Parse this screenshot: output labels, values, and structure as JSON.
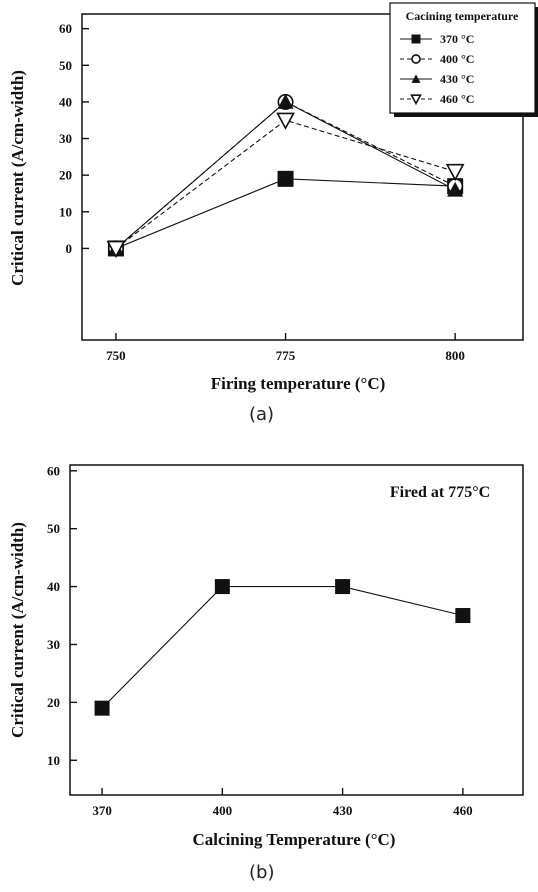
{
  "chart_data": [
    {
      "type": "line",
      "xlabel": "Firing temperature (°C)",
      "ylabel": "Critical current (A/cm-width)",
      "x": [
        750,
        775,
        800
      ],
      "xticks": [
        750,
        775,
        800
      ],
      "xlim": [
        745,
        810
      ],
      "yticks": [
        0,
        10,
        20,
        30,
        40,
        50,
        60
      ],
      "ylim": [
        -25,
        64
      ],
      "grid": false,
      "legend": {
        "title": "Cacining temperature",
        "position": "top-right"
      },
      "series": [
        {
          "name": "370 °C",
          "values": [
            0,
            19,
            17
          ],
          "marker": "square-filled",
          "line": "solid"
        },
        {
          "name": "400 °C",
          "values": [
            0,
            40,
            17
          ],
          "marker": "circle-open",
          "line": "dashed"
        },
        {
          "name": "430 °C",
          "values": [
            0,
            40,
            16
          ],
          "marker": "triangle-up-filled",
          "line": "solid"
        },
        {
          "name": "460 °C",
          "values": [
            0,
            35,
            21
          ],
          "marker": "triangle-down-open",
          "line": "dashed"
        }
      ],
      "caption": "(a)"
    },
    {
      "type": "line",
      "xlabel": "Calcining Temperature (°C)",
      "ylabel": "Critical current (A/cm-width)",
      "annotation": "Fired at 775°C",
      "x": [
        370,
        400,
        430,
        460
      ],
      "xticks": [
        370,
        400,
        430,
        460
      ],
      "xlim": [
        362,
        475
      ],
      "yticks": [
        10,
        20,
        30,
        40,
        50,
        60
      ],
      "ylim": [
        4,
        61
      ],
      "grid": false,
      "series": [
        {
          "values": [
            19,
            40,
            40,
            35
          ],
          "marker": "square-filled",
          "line": "solid"
        }
      ],
      "caption": "(b)"
    }
  ]
}
